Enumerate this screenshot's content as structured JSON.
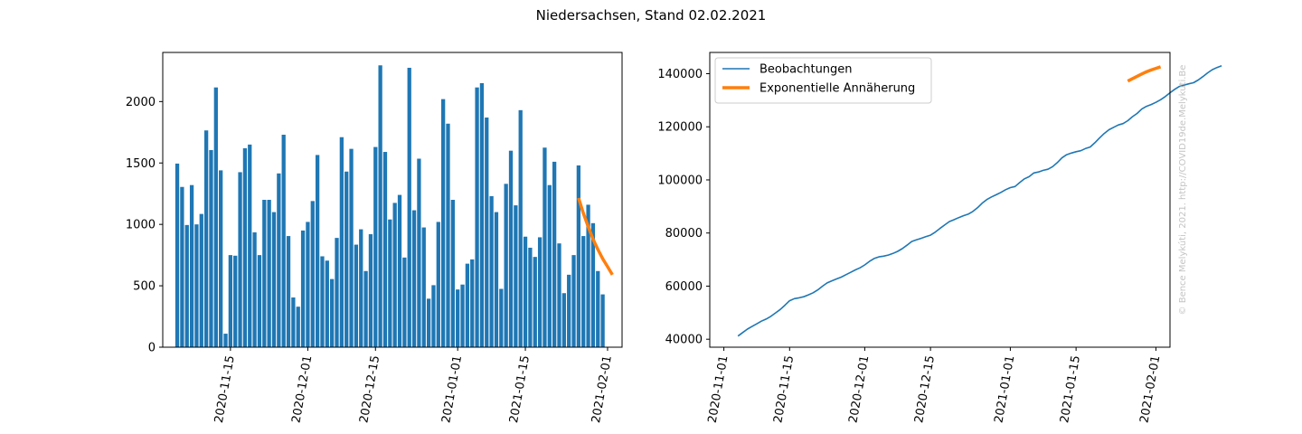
{
  "figure_title": "Niedersachsen, Stand 02.02.2021",
  "watermark": "© Bence Melykúti, 2021. http://COVID19de.Melykuti.Be",
  "colors": {
    "bar": "#1f77b4",
    "observed": "#1f77b4",
    "fit": "#ff7f0e"
  },
  "chart_data": [
    {
      "type": "bar",
      "title": "",
      "xlabel": "",
      "ylabel": "",
      "ylim": [
        0,
        2400
      ],
      "yticks": [
        0,
        500,
        1000,
        1500,
        2000
      ],
      "xlim": [
        "2020-11-01",
        "2021-02-04"
      ],
      "xticks": [
        "2020-11-15",
        "2020-12-01",
        "2020-12-15",
        "2021-01-01",
        "2021-01-15",
        "2021-02-01"
      ],
      "x_start": "2020-11-04",
      "values": [
        1495,
        1305,
        995,
        1320,
        1000,
        1085,
        1765,
        1605,
        2115,
        1440,
        110,
        750,
        745,
        1425,
        1620,
        1650,
        935,
        750,
        1200,
        1200,
        1100,
        1415,
        1730,
        905,
        405,
        330,
        950,
        1020,
        1190,
        1565,
        740,
        705,
        555,
        890,
        1710,
        1430,
        1615,
        835,
        960,
        620,
        920,
        1630,
        2295,
        1590,
        1040,
        1175,
        1240,
        730,
        2275,
        1115,
        1535,
        975,
        395,
        505,
        1020,
        2020,
        1820,
        1200,
        470,
        510,
        680,
        715,
        2115,
        2150,
        1870,
        1230,
        1100,
        475,
        1330,
        1600,
        1155,
        1930,
        900,
        810,
        735,
        895,
        1625,
        1320,
        1510,
        845,
        440,
        590,
        750,
        1480,
        905,
        1160,
        1010,
        620,
        430
      ],
      "fit": {
        "name": "Exponentielle Annäherung",
        "x": [
          "2021-01-26",
          "2021-01-27",
          "2021-01-28",
          "2021-01-29",
          "2021-01-30",
          "2021-01-31",
          "2021-02-01",
          "2021-02-02"
        ],
        "values": [
          1215,
          1090,
          980,
          880,
          795,
          720,
          655,
          590
        ]
      }
    },
    {
      "type": "line",
      "title": "",
      "xlabel": "",
      "ylabel": "",
      "ylim": [
        37000,
        148000
      ],
      "yticks": [
        40000,
        60000,
        80000,
        100000,
        120000,
        140000
      ],
      "xlim": [
        "2020-10-29",
        "2021-02-04"
      ],
      "xticks": [
        "2020-11-01",
        "2020-11-15",
        "2020-12-01",
        "2020-12-15",
        "2021-01-01",
        "2021-01-15",
        "2021-02-01"
      ],
      "legend_position": "top-left",
      "series": [
        {
          "name": "Beobachtungen",
          "x_start": "2020-11-04",
          "values": [
            41200,
            42500,
            43800,
            44800,
            45800,
            46800,
            47600,
            48600,
            49900,
            51200,
            52800,
            54500,
            55300,
            55600,
            56000,
            56700,
            57500,
            58600,
            60000,
            61200,
            62000,
            62700,
            63400,
            64300,
            65200,
            66100,
            66900,
            68000,
            69300,
            70400,
            71000,
            71300,
            71700,
            72300,
            73100,
            74100,
            75400,
            76800,
            77400,
            78000,
            78600,
            79200,
            80300,
            81700,
            83000,
            84300,
            85000,
            85800,
            86500,
            87100,
            88100,
            89500,
            91200,
            92600,
            93600,
            94400,
            95300,
            96300,
            97100,
            97500,
            99000,
            100400,
            101200,
            102600,
            103000,
            103600,
            104000,
            105000,
            106500,
            108300,
            109500,
            110100,
            110600,
            111000,
            111800,
            112400,
            114000,
            115800,
            117500,
            118900,
            119800,
            120700,
            121200,
            122300,
            123800,
            125000,
            126700,
            127700,
            128400,
            129200,
            130200,
            131400,
            132800,
            134100,
            135200,
            135700,
            136200,
            136600,
            137600,
            138900,
            140300,
            141500,
            142300,
            143000
          ]
        },
        {
          "name": "Exponentielle Annäherung",
          "x": [
            "2021-01-26",
            "2021-01-27",
            "2021-01-28",
            "2021-01-29",
            "2021-01-30",
            "2021-01-31",
            "2021-02-01",
            "2021-02-02"
          ],
          "values": [
            137200,
            138100,
            139000,
            139900,
            140700,
            141400,
            142000,
            142600
          ]
        }
      ]
    }
  ]
}
